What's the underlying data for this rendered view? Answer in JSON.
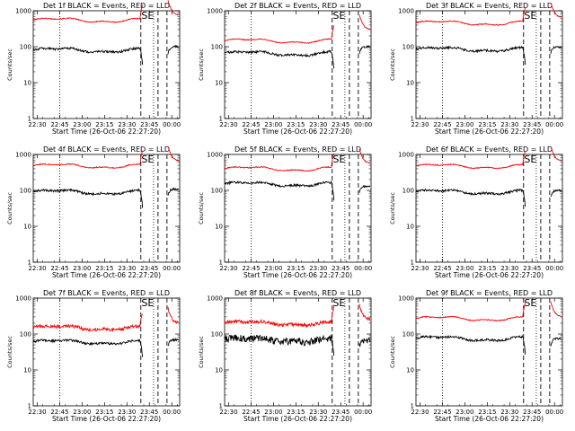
{
  "figure": {
    "xlabel": "Start Time (26-Oct-06 22:27:20)",
    "ylabel": "Counts/sec",
    "x_tick_labels": [
      "22:30",
      "22:45",
      "23:00",
      "23:15",
      "23:30",
      "23:45",
      "00:00"
    ],
    "y_tick_labels": [
      "1",
      "10",
      "100",
      "1000"
    ],
    "markers": [
      "S",
      "E"
    ],
    "colors": {
      "events": "#000000",
      "lld": "#ff0000",
      "axes": "#000000",
      "background": "#ffffff"
    }
  },
  "chart_data": [
    {
      "type": "line",
      "title": "Det 1f BLACK = Events, RED = LLD",
      "xlabel": "Start Time (26-Oct-06 22:27:20)",
      "ylabel": "Counts/sec",
      "y_scale": "log",
      "ylim": [
        1,
        1000
      ],
      "xlim_minutes_after_start": [
        0,
        98
      ],
      "events_level": 80,
      "lld_level": 550,
      "saa_return": {
        "events": 100,
        "lld": 750
      },
      "series": [
        {
          "name": "Events",
          "color": "#000000"
        },
        {
          "name": "LLD",
          "color": "#ff0000"
        }
      ]
    },
    {
      "type": "line",
      "title": "Det 2f BLACK = Events, RED = LLD",
      "xlabel": "Start Time (26-Oct-06 22:27:20)",
      "ylabel": "Counts/sec",
      "y_scale": "log",
      "ylim": [
        1,
        1000
      ],
      "xlim_minutes_after_start": [
        0,
        98
      ],
      "events_level": 65,
      "lld_level": 145,
      "saa_return": {
        "events": 100,
        "lld": 300
      },
      "series": [
        {
          "name": "Events",
          "color": "#000000"
        },
        {
          "name": "LLD",
          "color": "#ff0000"
        }
      ]
    },
    {
      "type": "line",
      "title": "Det 3f BLACK = Events, RED = LLD",
      "xlabel": "Start Time (26-Oct-06 22:27:20)",
      "ylabel": "Counts/sec",
      "y_scale": "log",
      "ylim": [
        1,
        1000
      ],
      "xlim_minutes_after_start": [
        0,
        98
      ],
      "events_level": 85,
      "lld_level": 460,
      "saa_return": {
        "events": 100,
        "lld": 650
      },
      "series": [
        {
          "name": "Events",
          "color": "#000000"
        },
        {
          "name": "LLD",
          "color": "#ff0000"
        }
      ]
    },
    {
      "type": "line",
      "title": "Det 4f BLACK = Events, RED = LLD",
      "xlabel": "Start Time (26-Oct-06 22:27:20)",
      "ylabel": "Counts/sec",
      "y_scale": "log",
      "ylim": [
        1,
        1000
      ],
      "xlim_minutes_after_start": [
        0,
        98
      ],
      "events_level": 90,
      "lld_level": 480,
      "saa_return": {
        "events": 110,
        "lld": 650
      },
      "series": [
        {
          "name": "Events",
          "color": "#000000"
        },
        {
          "name": "LLD",
          "color": "#ff0000"
        }
      ]
    },
    {
      "type": "line",
      "title": "Det 5f BLACK = Events, RED = LLD",
      "xlabel": "Start Time (26-Oct-06 22:27:20)",
      "ylabel": "Counts/sec",
      "y_scale": "log",
      "ylim": [
        1,
        1000
      ],
      "xlim_minutes_after_start": [
        0,
        98
      ],
      "events_level": 150,
      "lld_level": 400,
      "saa_return": {
        "events": 130,
        "lld": 550
      },
      "series": [
        {
          "name": "Events",
          "color": "#000000"
        },
        {
          "name": "LLD",
          "color": "#ff0000"
        }
      ]
    },
    {
      "type": "line",
      "title": "Det 6f BLACK = Events, RED = LLD",
      "xlabel": "Start Time (26-Oct-06 22:27:20)",
      "ylabel": "Counts/sec",
      "y_scale": "log",
      "ylim": [
        1,
        1000
      ],
      "xlim_minutes_after_start": [
        0,
        98
      ],
      "events_level": 90,
      "lld_level": 470,
      "saa_return": {
        "events": 100,
        "lld": 650
      },
      "series": [
        {
          "name": "Events",
          "color": "#000000"
        },
        {
          "name": "LLD",
          "color": "#ff0000"
        }
      ]
    },
    {
      "type": "line",
      "title": "Det 7f BLACK = Events, RED = LLD",
      "xlabel": "Start Time (26-Oct-06 22:27:20)",
      "ylabel": "Counts/sec",
      "y_scale": "log",
      "ylim": [
        1,
        1000
      ],
      "xlim_minutes_after_start": [
        0,
        98
      ],
      "events_level": 60,
      "lld_level": 150,
      "saa_return": {
        "events": 70,
        "lld": 200
      },
      "series": [
        {
          "name": "Events",
          "color": "#000000"
        },
        {
          "name": "LLD",
          "color": "#ff0000"
        }
      ]
    },
    {
      "type": "line",
      "title": "Det 8f BLACK = Events, RED = LLD",
      "xlabel": "Start Time (26-Oct-06 22:27:20)",
      "ylabel": "Counts/sec",
      "y_scale": "log",
      "ylim": [
        1,
        1000
      ],
      "xlim_minutes_after_start": [
        0,
        98
      ],
      "events_level": 70,
      "lld_level": 200,
      "saa_return": {
        "events": 70,
        "lld": 250
      },
      "series": [
        {
          "name": "Events",
          "color": "#000000"
        },
        {
          "name": "LLD",
          "color": "#ff0000"
        }
      ]
    },
    {
      "type": "line",
      "title": "Det 9f BLACK = Events, RED = LLD",
      "xlabel": "Start Time (26-Oct-06 22:27:20)",
      "ylabel": "Counts/sec",
      "y_scale": "log",
      "ylim": [
        1,
        1000
      ],
      "xlim_minutes_after_start": [
        0,
        98
      ],
      "events_level": 75,
      "lld_level": 270,
      "saa_return": {
        "events": 75,
        "lld": 300
      },
      "series": [
        {
          "name": "Events",
          "color": "#000000"
        },
        {
          "name": "LLD",
          "color": "#ff0000"
        }
      ]
    }
  ]
}
